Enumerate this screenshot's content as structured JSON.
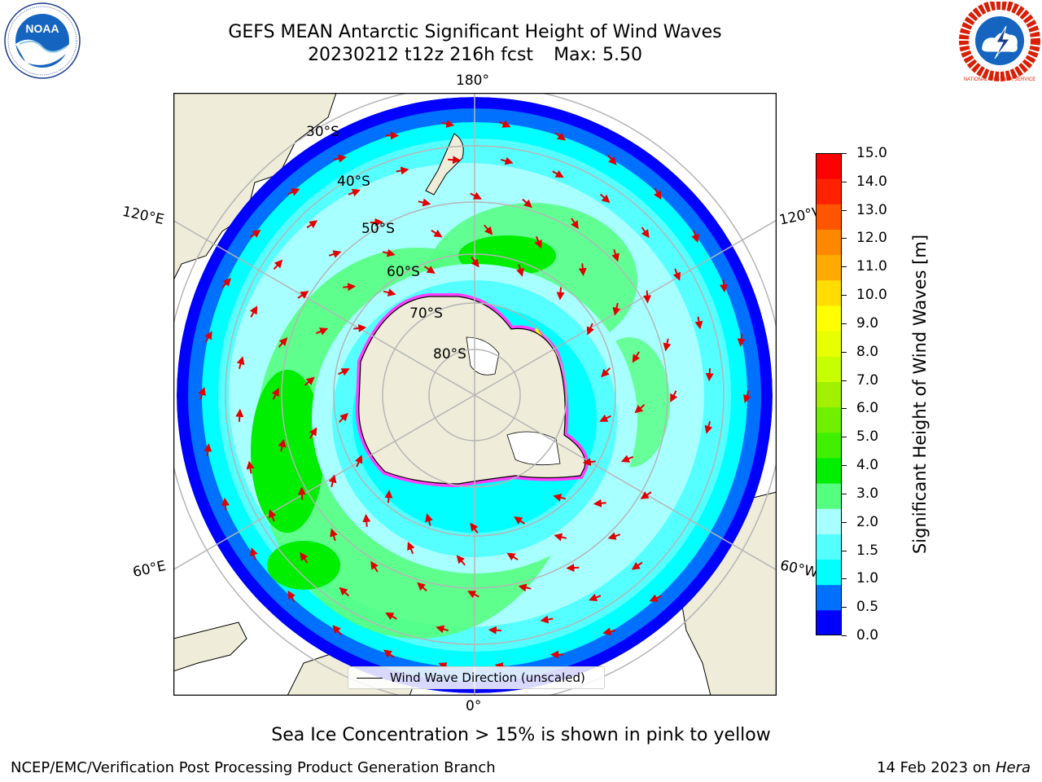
{
  "header": {
    "title_line1": "GEFS MEAN Antarctic Significant Height of Wind Waves",
    "title_line2_run": "20230212 t12z 216h fcst",
    "title_line2_max": "Max: 5.50"
  },
  "logos": {
    "left": "noaa-logo",
    "left_text": "NOAA",
    "right": "nws-logo",
    "right_text": "NATIONAL WEATHER SERVICE"
  },
  "map": {
    "projection": "south-polar-stereographic",
    "land_color": "#efedd9",
    "longitude_labels": [
      "180°",
      "120°E",
      "120°W",
      "60°E",
      "60°W",
      "0°"
    ],
    "latitude_labels": [
      "30°S",
      "40°S",
      "50°S",
      "60°S",
      "70°S",
      "80°S"
    ],
    "arrow_color": "#e00000",
    "sea_ice_colors": [
      "#ff40ff",
      "#ffff00"
    ]
  },
  "legend": {
    "label": "Wind Wave Direction (unscaled)"
  },
  "colorbar": {
    "label": "Significant Height of Wind Waves [m]",
    "ticks": [
      "15.0",
      "14.0",
      "13.0",
      "12.0",
      "11.0",
      "10.0",
      "9.0",
      "8.0",
      "7.0",
      "6.0",
      "5.0",
      "4.0",
      "3.0",
      "2.0",
      "1.5",
      "1.0",
      "0.5",
      "0.0"
    ],
    "colors_bottom_to_top": [
      "#0000ff",
      "#0070ff",
      "#00ffff",
      "#55ffff",
      "#a8ffff",
      "#55ff80",
      "#00ee00",
      "#40f000",
      "#70f000",
      "#a0f000",
      "#c8ff00",
      "#e8ff00",
      "#ffff00",
      "#ffdd00",
      "#ffaa00",
      "#ff8800",
      "#ff5500",
      "#ff2200",
      "#ff0000"
    ]
  },
  "note": "Sea Ice Concentration > 15% is shown in pink to yellow",
  "footer": {
    "left": "NCEP/EMC/Verification Post Processing Product Generation Branch",
    "right_date": "14 Feb 2023 on",
    "right_machine": "Hera"
  }
}
